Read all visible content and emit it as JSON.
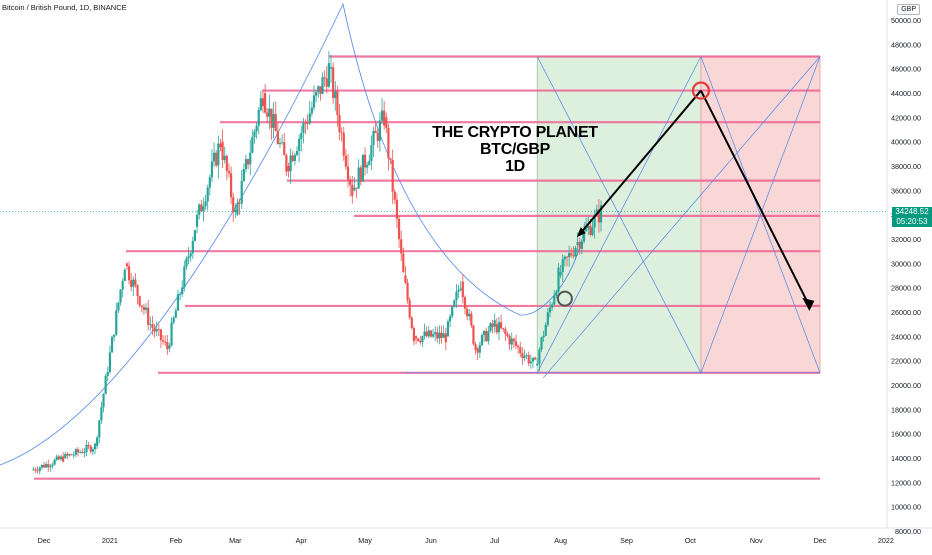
{
  "header": {
    "symbol_title": "Bitcoin / British Pound, 1D, BINANCE",
    "currency": "GBP"
  },
  "price_badge": {
    "price": "34248.52",
    "countdown": "05:20:53"
  },
  "annotation": {
    "line1": "THE CRYPTO PLANET",
    "line2": "BTC/GBP",
    "line3": "1D"
  },
  "colors": {
    "up": "#26a69a",
    "down": "#ef5350",
    "hline": "#f06292",
    "fib_blue": "#4f86e8",
    "long_zone": "#d7ecd7",
    "short_zone": "#f8d0d0",
    "price_line": "#089981"
  },
  "chart_data": {
    "type": "candlestick",
    "title": "Bitcoin / British Pound, 1D, BINANCE",
    "y_axis": {
      "range": [
        8000,
        51000
      ],
      "ticks": [
        "50000.00",
        "48000.00",
        "46000.00",
        "44000.00",
        "42000.00",
        "40000.00",
        "38000.00",
        "36000.00",
        "34000.00",
        "32000.00",
        "30000.00",
        "28000.00",
        "26000.00",
        "24000.00",
        "22000.00",
        "20000.00",
        "18000.00",
        "16000.00",
        "14000.00",
        "12000.00",
        "10000.00",
        "8000.00"
      ]
    },
    "x_axis": {
      "ticks": [
        "Dec",
        "2021",
        "Feb",
        "Mar",
        "Apr",
        "May",
        "Jun",
        "Jul",
        "Aug",
        "Sep",
        "Oct",
        "Nov",
        "Dec",
        "2022"
      ]
    },
    "last_price": 34248.52,
    "price_path": [
      {
        "date": "2020-11-25",
        "price": 13000
      },
      {
        "date": "2020-12-10",
        "price": 14000
      },
      {
        "date": "2020-12-25",
        "price": 15000
      },
      {
        "date": "2021-01-08",
        "price": 30000
      },
      {
        "date": "2021-01-20",
        "price": 25000
      },
      {
        "date": "2021-01-28",
        "price": 23000
      },
      {
        "date": "2021-02-10",
        "price": 33000
      },
      {
        "date": "2021-02-22",
        "price": 40000
      },
      {
        "date": "2021-03-01",
        "price": 34000
      },
      {
        "date": "2021-03-14",
        "price": 44000
      },
      {
        "date": "2021-03-25",
        "price": 38000
      },
      {
        "date": "2021-04-14",
        "price": 46000
      },
      {
        "date": "2021-04-25",
        "price": 36000
      },
      {
        "date": "2021-05-10",
        "price": 42000
      },
      {
        "date": "2021-05-19",
        "price": 29000
      },
      {
        "date": "2021-05-24",
        "price": 24000
      },
      {
        "date": "2021-06-08",
        "price": 24000
      },
      {
        "date": "2021-06-15",
        "price": 28500
      },
      {
        "date": "2021-06-22",
        "price": 23000
      },
      {
        "date": "2021-07-01",
        "price": 25000
      },
      {
        "date": "2021-07-20",
        "price": 21600
      },
      {
        "date": "2021-07-31",
        "price": 29000
      },
      {
        "date": "2021-08-08",
        "price": 31500
      },
      {
        "date": "2021-08-20",
        "price": 34250
      }
    ],
    "horizontal_levels": [
      12300,
      21000,
      26500,
      31000,
      33900,
      36800,
      41600,
      44200,
      47000
    ],
    "projection": {
      "long_zone": {
        "from": "2021-07-21",
        "to": "2021-10-06",
        "low": 21000,
        "high": 47000
      },
      "short_zone": {
        "from": "2021-10-06",
        "to": "2021-12-01",
        "low": 21000,
        "high": 47000
      },
      "target_top": {
        "date": "2021-10-06",
        "price": 44200
      },
      "target_bottom": {
        "date": "2021-11-26",
        "price": 26500
      }
    }
  }
}
